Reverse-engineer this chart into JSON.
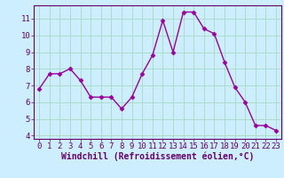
{
  "x": [
    0,
    1,
    2,
    3,
    4,
    5,
    6,
    7,
    8,
    9,
    10,
    11,
    12,
    13,
    14,
    15,
    16,
    17,
    18,
    19,
    20,
    21,
    22,
    23
  ],
  "y": [
    6.8,
    7.7,
    7.7,
    8.0,
    7.3,
    6.3,
    6.3,
    6.3,
    5.6,
    6.3,
    7.7,
    8.8,
    10.9,
    9.0,
    11.4,
    11.4,
    10.4,
    10.1,
    8.4,
    6.9,
    6.0,
    4.6,
    4.6,
    4.3
  ],
  "line_color": "#990099",
  "marker": "D",
  "marker_size": 2.5,
  "background_color": "#cceeff",
  "grid_color": "#aaddcc",
  "xlabel": "Windchill (Refroidissement éolien,°C)",
  "xlim": [
    -0.5,
    23.5
  ],
  "ylim": [
    3.8,
    11.8
  ],
  "yticks": [
    4,
    5,
    6,
    7,
    8,
    9,
    10,
    11
  ],
  "xticks": [
    0,
    1,
    2,
    3,
    4,
    5,
    6,
    7,
    8,
    9,
    10,
    11,
    12,
    13,
    14,
    15,
    16,
    17,
    18,
    19,
    20,
    21,
    22,
    23
  ],
  "tick_label_fontsize": 6.5,
  "xlabel_fontsize": 7,
  "axis_color": "#660066",
  "spine_color": "#660066",
  "line_width": 1.0
}
